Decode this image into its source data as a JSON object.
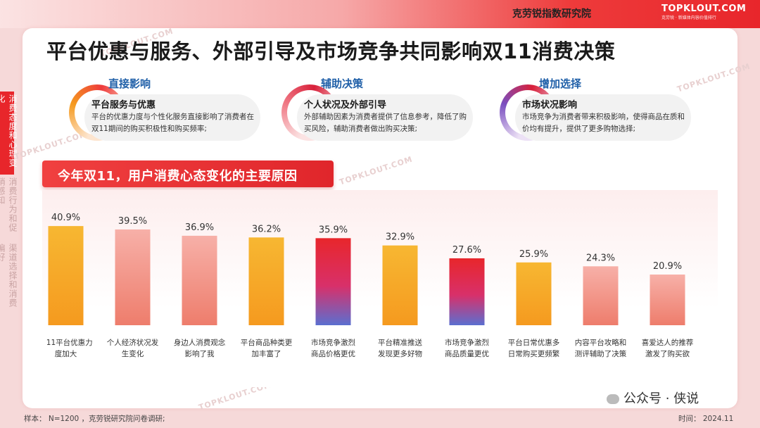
{
  "header": {
    "org_name": "克劳锐指数研究院",
    "brand_name": "TOPKLOUT.COM",
    "brand_sub": "克劳锐 · 新媒体内容价值排行"
  },
  "sidebar": {
    "items": [
      {
        "label": "消费态度和心理变化",
        "active": true
      },
      {
        "label": "消费行为和促销感知",
        "active": false
      },
      {
        "label": "渠道选择和消费偏好",
        "active": false
      }
    ]
  },
  "page_title": "平台优惠与服务、外部引导及市场竞争共同影响双11消费决策",
  "panels": [
    {
      "tag": "直接影响",
      "tag_color": "#1f5fa8",
      "heading": "平台服务与优惠",
      "desc": "平台的优惠力度与个性化服务直接影响了消费者在双11期间的购买积极性和购买频率;"
    },
    {
      "tag": "辅助决策",
      "tag_color": "#1f5fa8",
      "heading": "个人状况及外部引导",
      "desc": "外部辅助因素为消费者提供了信息参考，降低了购买风险，辅助消费者做出购买决策;"
    },
    {
      "tag": "增加选择",
      "tag_color": "#1f5fa8",
      "heading": "市场状况影响",
      "desc": "市场竞争为消费者带来积极影响，使得商品在质和价均有提升，提供了更多购物选择;"
    }
  ],
  "chart_data": {
    "type": "bar",
    "title": "今年双11，用户消费心态变化的主要原因",
    "categories": [
      "双11平台优惠力度加大",
      "个人经济状况发生变化",
      "身边人消费观念影响了我",
      "平台商品种类更加丰富了",
      "市场竞争激烈商品价格更优",
      "平台精准推送发现更多好物",
      "市场竞争激烈商品质量更优",
      "平台日常优惠多日常购买更频繁",
      "内容平台攻略和测评辅助了决策",
      "喜爱达人的推荐激发了购买欲"
    ],
    "category_lines": [
      [
        "双11平台优惠力",
        "度加大"
      ],
      [
        "个人经济状况发",
        "生变化"
      ],
      [
        "身边人消费观念",
        "影响了我"
      ],
      [
        "平台商品种类更",
        "加丰富了"
      ],
      [
        "市场竞争激烈",
        "商品价格更优"
      ],
      [
        "平台精准推送",
        "发现更多好物"
      ],
      [
        "市场竞争激烈",
        "商品质量更优"
      ],
      [
        "平台日常优惠多",
        "日常购买更频繁"
      ],
      [
        "内容平台攻略和",
        "测评辅助了决策"
      ],
      [
        "喜爱达人的推荐",
        "激发了购买欲"
      ]
    ],
    "values": [
      40.9,
      39.5,
      36.9,
      36.2,
      35.9,
      32.9,
      27.6,
      25.9,
      24.3,
      20.9
    ],
    "value_labels": [
      "40.9%",
      "39.5%",
      "36.9%",
      "36.2%",
      "35.9%",
      "32.9%",
      "27.6%",
      "25.9%",
      "24.3%",
      "20.9%"
    ],
    "bar_styles": [
      "orange",
      "pink",
      "pink",
      "orange",
      "redblue",
      "orange",
      "redblue",
      "orange",
      "pink",
      "pink"
    ],
    "ylim": [
      0,
      45
    ],
    "grid": false,
    "colors": {
      "orange_top": "#f7b732",
      "orange_bottom": "#f59a1f",
      "pink_top": "#f7b0a8",
      "pink_bottom": "#ee7d6c",
      "red_top": "#e8262b",
      "blue_bottom": "#5b6fd0"
    }
  },
  "footer": {
    "sample": "样本： N=1200 ，克劳锐研究院问卷调研;",
    "date": "时间： 2024.11",
    "wechat": "公众号 · 侠说"
  },
  "watermark": "TOPKLOUT.COM"
}
